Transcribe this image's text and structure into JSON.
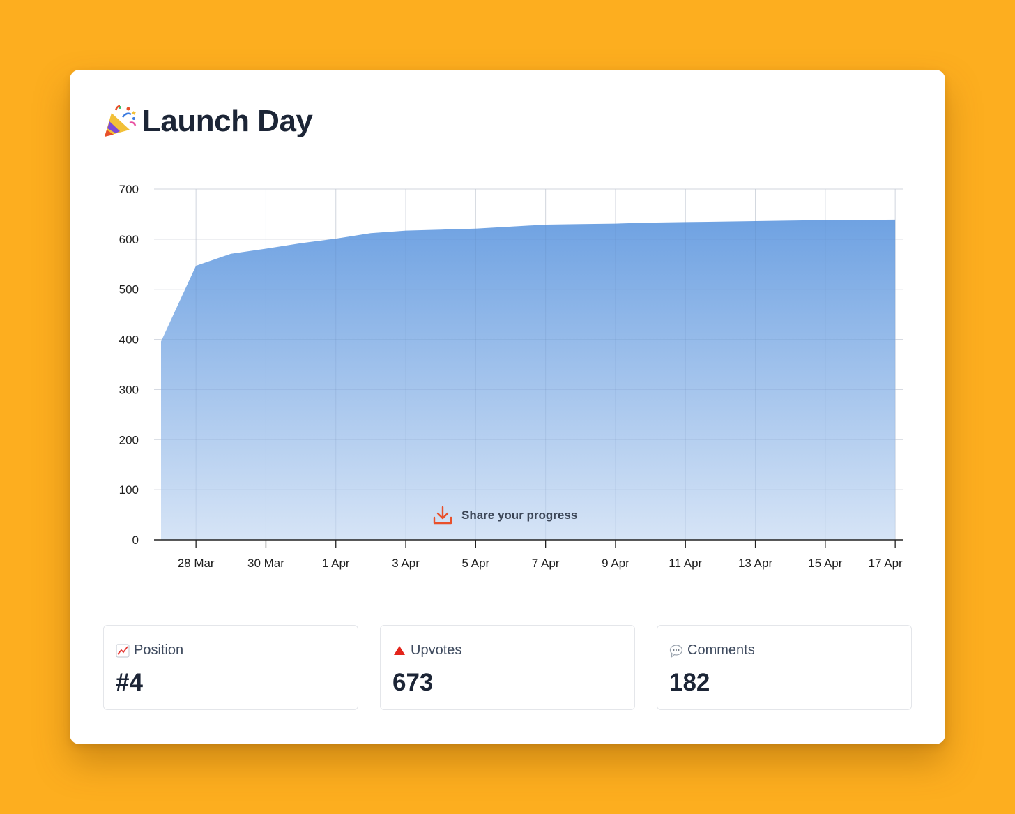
{
  "header": {
    "icon": "party-popper-icon",
    "title": "Launch Day"
  },
  "chart_data": {
    "type": "area",
    "title": "Launch Day",
    "xlabel": "",
    "ylabel": "",
    "x": [
      "27 Mar",
      "28 Mar",
      "29 Mar",
      "30 Mar",
      "31 Mar",
      "1 Apr",
      "2 Apr",
      "3 Apr",
      "4 Apr",
      "5 Apr",
      "6 Apr",
      "7 Apr",
      "8 Apr",
      "9 Apr",
      "10 Apr",
      "11 Apr",
      "12 Apr",
      "13 Apr",
      "14 Apr",
      "15 Apr",
      "16 Apr",
      "17 Apr"
    ],
    "series": [
      {
        "name": "",
        "values": [
          396,
          547,
          571,
          581,
          592,
          601,
          612,
          617,
          619,
          621,
          625,
          629,
          630,
          631,
          633,
          634,
          635,
          636,
          637,
          638,
          638,
          639
        ]
      }
    ],
    "x_tick_labels": [
      "28 Mar",
      "30 Mar",
      "1 Apr",
      "3 Apr",
      "5 Apr",
      "7 Apr",
      "9 Apr",
      "11 Apr",
      "13 Apr",
      "15 Apr",
      "17 Apr"
    ],
    "y_ticks": [
      0,
      100,
      200,
      300,
      400,
      500,
      600,
      700
    ],
    "ylim": [
      0,
      700
    ],
    "grid": true,
    "legend": "none",
    "fill_color_top": "#6fa2e2",
    "fill_color_bottom": "#d6e4f6"
  },
  "share": {
    "label": "Share your progress",
    "icon": "download-icon",
    "icon_color": "#e8502b"
  },
  "stats": [
    {
      "icon": "chart-increasing-icon",
      "label": "Position",
      "value": "#4"
    },
    {
      "icon": "red-triangle-up-icon",
      "label": "Upvotes",
      "value": "673"
    },
    {
      "icon": "speech-balloon-icon",
      "label": "Comments",
      "value": "182"
    }
  ],
  "colors": {
    "background": "#FDAE1F",
    "card": "#ffffff",
    "title_text": "#1c2536"
  }
}
